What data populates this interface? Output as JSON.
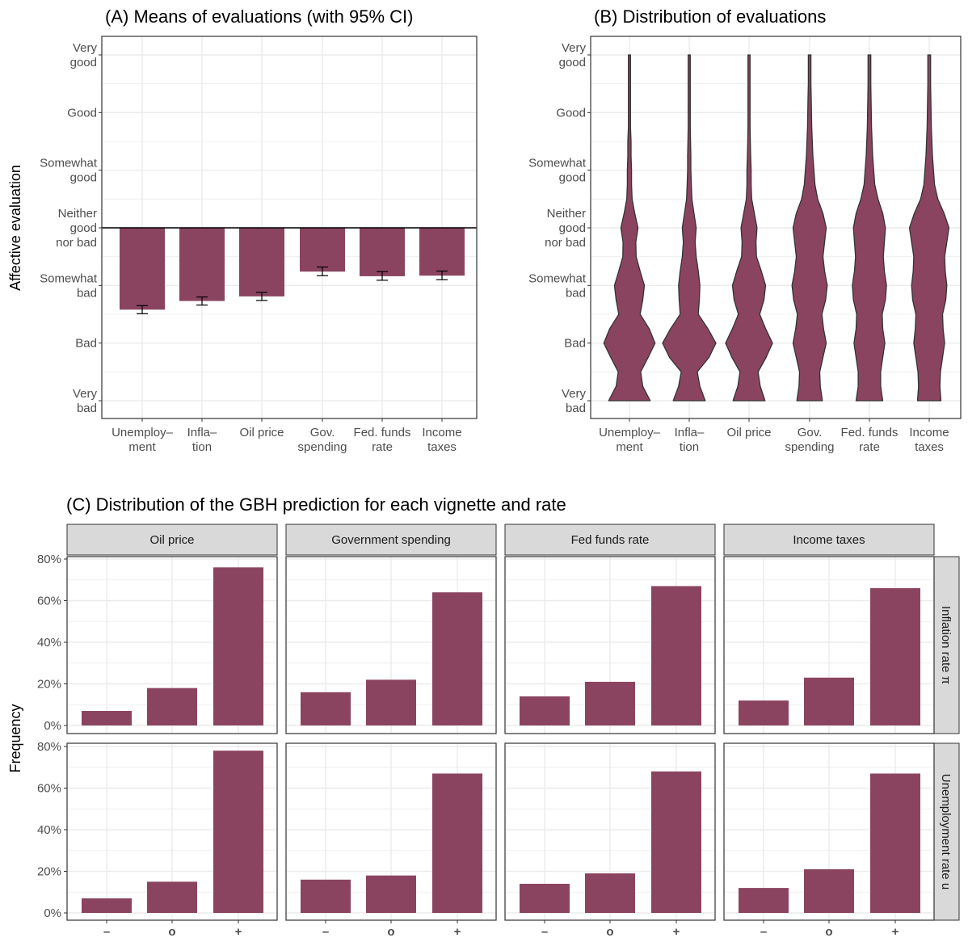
{
  "colors": {
    "fill": "#8b4460",
    "outline": "#333333",
    "strip_bg": "#d9d9d9",
    "grid": "#ebebeb"
  },
  "y_axis_label": "Affective evaluation",
  "panel_c_y_label": "Frequency",
  "categories": [
    "Unemploy–\nment",
    "Infla–\ntion",
    "Oil price",
    "Gov.\nspending",
    "Fed. funds\nrate",
    "Income\ntaxes"
  ],
  "evaluation_levels": [
    "Very\nbad",
    "Bad",
    "Somewhat\nbad",
    "Neither\ngood\nnor bad",
    "Somewhat\ngood",
    "Good",
    "Very\ngood"
  ],
  "chart_data": [
    {
      "type": "bar",
      "title": "(A) Means of evaluations (with 95% CI)",
      "ylabel": "Affective evaluation",
      "ylim": [
        -3,
        3
      ],
      "baseline": 0,
      "values": [
        -1.42,
        -1.27,
        -1.19,
        -0.76,
        -0.84,
        -0.83
      ],
      "ci_low": [
        -1.49,
        -1.34,
        -1.26,
        -0.83,
        -0.91,
        -0.9
      ],
      "ci_high": [
        -1.35,
        -1.2,
        -1.12,
        -0.68,
        -0.76,
        -0.75
      ],
      "grid": true
    },
    {
      "type": "violin",
      "title": "(B) Distribution of evaluations",
      "ylim": [
        -3,
        3
      ],
      "density_y": [
        -3,
        -2.75,
        -2.5,
        -2.25,
        -2,
        -1.75,
        -1.5,
        -1.25,
        -1,
        -0.75,
        -0.5,
        -0.25,
        0,
        0.25,
        0.5,
        0.75,
        1,
        1.25,
        1.5,
        1.75,
        2,
        2.25,
        2.5,
        2.75,
        3
      ],
      "densities": [
        [
          0.78,
          0.5,
          0.42,
          0.7,
          0.96,
          0.74,
          0.4,
          0.5,
          0.56,
          0.4,
          0.25,
          0.24,
          0.32,
          0.2,
          0.1,
          0.08,
          0.08,
          0.06,
          0.06,
          0.04,
          0.04,
          0.04,
          0.04,
          0.04,
          0.04
        ],
        [
          0.6,
          0.4,
          0.3,
          0.74,
          1.0,
          0.7,
          0.34,
          0.38,
          0.4,
          0.34,
          0.26,
          0.22,
          0.26,
          0.18,
          0.1,
          0.08,
          0.06,
          0.06,
          0.05,
          0.04,
          0.04,
          0.04,
          0.04,
          0.04,
          0.04
        ],
        [
          0.6,
          0.42,
          0.34,
          0.64,
          0.88,
          0.62,
          0.4,
          0.56,
          0.62,
          0.46,
          0.28,
          0.26,
          0.3,
          0.2,
          0.1,
          0.08,
          0.08,
          0.06,
          0.05,
          0.04,
          0.04,
          0.04,
          0.04,
          0.04,
          0.04
        ],
        [
          0.48,
          0.4,
          0.38,
          0.5,
          0.62,
          0.52,
          0.46,
          0.6,
          0.66,
          0.56,
          0.5,
          0.56,
          0.62,
          0.5,
          0.3,
          0.2,
          0.16,
          0.12,
          0.1,
          0.08,
          0.07,
          0.06,
          0.05,
          0.05,
          0.05
        ],
        [
          0.5,
          0.42,
          0.42,
          0.5,
          0.58,
          0.5,
          0.48,
          0.6,
          0.64,
          0.56,
          0.52,
          0.56,
          0.6,
          0.5,
          0.32,
          0.2,
          0.16,
          0.12,
          0.1,
          0.08,
          0.07,
          0.06,
          0.05,
          0.05,
          0.05
        ],
        [
          0.44,
          0.4,
          0.42,
          0.5,
          0.58,
          0.52,
          0.5,
          0.62,
          0.66,
          0.6,
          0.58,
          0.66,
          0.74,
          0.56,
          0.32,
          0.2,
          0.16,
          0.12,
          0.1,
          0.08,
          0.07,
          0.06,
          0.05,
          0.05,
          0.05
        ]
      ]
    },
    {
      "type": "bar",
      "title": "(C) Distribution of the GBH prediction for each vignette and rate",
      "ylabel": "Frequency",
      "categories": [
        "–",
        "o",
        "+"
      ],
      "column_facets": [
        "Oil price",
        "Government spending",
        "Fed funds rate",
        "Income taxes"
      ],
      "row_facets": [
        "Inflation rate π",
        "Unemployment rate u"
      ],
      "ylim": [
        0,
        0.8
      ],
      "y_ticks": [
        "0%",
        "20%",
        "40%",
        "60%",
        "80%"
      ],
      "values": [
        [
          [
            0.07,
            0.18,
            0.76
          ],
          [
            0.16,
            0.22,
            0.64
          ],
          [
            0.14,
            0.21,
            0.67
          ],
          [
            0.12,
            0.23,
            0.66
          ]
        ],
        [
          [
            0.07,
            0.15,
            0.78
          ],
          [
            0.16,
            0.18,
            0.67
          ],
          [
            0.14,
            0.19,
            0.68
          ],
          [
            0.12,
            0.21,
            0.67
          ]
        ]
      ]
    }
  ]
}
